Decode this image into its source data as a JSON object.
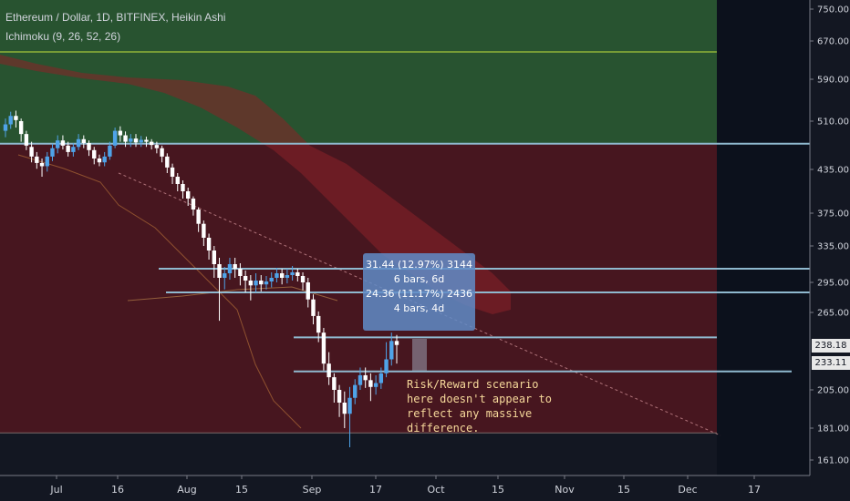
{
  "header": {
    "symbol_line": "Ethereum / Dollar, 1D, BITFINEX, Heikin Ashi",
    "indicator_line": "Ichimoku (9, 26, 52, 26)"
  },
  "measure_box": {
    "line1": "31.44 (12.97%) 3144",
    "line2": "6 bars, 6d",
    "line3": "24.36 (11.17%) 2436",
    "line4": "4 bars, 4d"
  },
  "annotation": {
    "line1": "Risk/Reward scenario",
    "line2": "here doesn't appear to",
    "line3": "reflect any massive",
    "line4": "difference."
  },
  "price_badges": {
    "upper": "238.18",
    "lower": "233.11"
  },
  "chart_data": {
    "type": "candlestick",
    "title": "Ethereum / Dollar, 1D, BITFINEX, Heikin Ashi",
    "y_ticks": [
      "750.00",
      "670.00",
      "590.00",
      "510.00",
      "435.00",
      "375.00",
      "335.00",
      "295.00",
      "265.00",
      "238.18",
      "233.11",
      "205.00",
      "181.00",
      "161.00"
    ],
    "x_ticks": [
      "Jul",
      "16",
      "Aug",
      "15",
      "Sep",
      "17",
      "Oct",
      "15",
      "Nov",
      "15",
      "Dec",
      "17"
    ],
    "horizontal_levels": [
      475,
      310,
      285,
      244,
      224,
      178
    ],
    "zones": [
      {
        "name": "green",
        "from": 475,
        "to": 750,
        "color": "#2f6e3a"
      },
      {
        "name": "red",
        "from": 178,
        "to": 475,
        "color": "#6b1e25"
      }
    ],
    "candles": [
      {
        "o": 495,
        "c": 505,
        "h": 515,
        "l": 485
      },
      {
        "o": 505,
        "c": 520,
        "h": 528,
        "l": 498
      },
      {
        "o": 520,
        "c": 512,
        "h": 530,
        "l": 500
      },
      {
        "o": 510,
        "c": 490,
        "h": 515,
        "l": 478
      },
      {
        "o": 490,
        "c": 472,
        "h": 495,
        "l": 465
      },
      {
        "o": 470,
        "c": 455,
        "h": 478,
        "l": 446
      },
      {
        "o": 455,
        "c": 445,
        "h": 462,
        "l": 436
      },
      {
        "o": 445,
        "c": 440,
        "h": 452,
        "l": 425
      },
      {
        "o": 440,
        "c": 455,
        "h": 462,
        "l": 432
      },
      {
        "o": 455,
        "c": 468,
        "h": 475,
        "l": 448
      },
      {
        "o": 468,
        "c": 480,
        "h": 488,
        "l": 460
      },
      {
        "o": 480,
        "c": 472,
        "h": 488,
        "l": 466
      },
      {
        "o": 472,
        "c": 462,
        "h": 478,
        "l": 455
      },
      {
        "o": 462,
        "c": 470,
        "h": 476,
        "l": 455
      },
      {
        "o": 470,
        "c": 482,
        "h": 490,
        "l": 465
      },
      {
        "o": 482,
        "c": 476,
        "h": 488,
        "l": 468
      },
      {
        "o": 476,
        "c": 465,
        "h": 480,
        "l": 456
      },
      {
        "o": 465,
        "c": 452,
        "h": 470,
        "l": 443
      },
      {
        "o": 452,
        "c": 446,
        "h": 458,
        "l": 440
      },
      {
        "o": 446,
        "c": 455,
        "h": 462,
        "l": 440
      },
      {
        "o": 455,
        "c": 472,
        "h": 478,
        "l": 450
      },
      {
        "o": 472,
        "c": 495,
        "h": 500,
        "l": 468
      },
      {
        "o": 495,
        "c": 488,
        "h": 502,
        "l": 478
      },
      {
        "o": 488,
        "c": 478,
        "h": 494,
        "l": 470
      },
      {
        "o": 478,
        "c": 483,
        "h": 490,
        "l": 470
      },
      {
        "o": 483,
        "c": 477,
        "h": 490,
        "l": 470
      },
      {
        "o": 477,
        "c": 481,
        "h": 487,
        "l": 470
      },
      {
        "o": 481,
        "c": 478,
        "h": 486,
        "l": 470
      },
      {
        "o": 478,
        "c": 473,
        "h": 482,
        "l": 466
      },
      {
        "o": 473,
        "c": 468,
        "h": 478,
        "l": 460
      },
      {
        "o": 468,
        "c": 455,
        "h": 472,
        "l": 446
      },
      {
        "o": 455,
        "c": 438,
        "h": 460,
        "l": 430
      },
      {
        "o": 438,
        "c": 425,
        "h": 444,
        "l": 415
      },
      {
        "o": 425,
        "c": 415,
        "h": 430,
        "l": 405
      },
      {
        "o": 415,
        "c": 405,
        "h": 420,
        "l": 395
      },
      {
        "o": 405,
        "c": 395,
        "h": 410,
        "l": 385
      },
      {
        "o": 395,
        "c": 380,
        "h": 398,
        "l": 372
      },
      {
        "o": 380,
        "c": 362,
        "h": 383,
        "l": 352
      },
      {
        "o": 362,
        "c": 345,
        "h": 366,
        "l": 335
      },
      {
        "o": 345,
        "c": 330,
        "h": 350,
        "l": 320
      },
      {
        "o": 330,
        "c": 315,
        "h": 335,
        "l": 300
      },
      {
        "o": 315,
        "c": 300,
        "h": 322,
        "l": 258
      },
      {
        "o": 300,
        "c": 305,
        "h": 312,
        "l": 288
      },
      {
        "o": 305,
        "c": 315,
        "h": 322,
        "l": 298
      },
      {
        "o": 315,
        "c": 310,
        "h": 322,
        "l": 300
      },
      {
        "o": 310,
        "c": 302,
        "h": 316,
        "l": 292
      },
      {
        "o": 302,
        "c": 297,
        "h": 308,
        "l": 285
      },
      {
        "o": 297,
        "c": 292,
        "h": 303,
        "l": 277
      },
      {
        "o": 292,
        "c": 297,
        "h": 305,
        "l": 285
      },
      {
        "o": 297,
        "c": 293,
        "h": 303,
        "l": 286
      },
      {
        "o": 293,
        "c": 296,
        "h": 302,
        "l": 288
      },
      {
        "o": 296,
        "c": 300,
        "h": 306,
        "l": 290
      },
      {
        "o": 300,
        "c": 305,
        "h": 311,
        "l": 295
      },
      {
        "o": 305,
        "c": 300,
        "h": 310,
        "l": 293
      },
      {
        "o": 300,
        "c": 303,
        "h": 310,
        "l": 294
      },
      {
        "o": 303,
        "c": 306,
        "h": 313,
        "l": 297
      },
      {
        "o": 306,
        "c": 302,
        "h": 310,
        "l": 296
      },
      {
        "o": 302,
        "c": 295,
        "h": 306,
        "l": 287
      },
      {
        "o": 295,
        "c": 278,
        "h": 300,
        "l": 270
      },
      {
        "o": 278,
        "c": 262,
        "h": 283,
        "l": 255
      },
      {
        "o": 262,
        "c": 248,
        "h": 266,
        "l": 240
      },
      {
        "o": 248,
        "c": 232,
        "h": 252,
        "l": 225
      },
      {
        "o": 232,
        "c": 218,
        "h": 236,
        "l": 210
      },
      {
        "o": 218,
        "c": 205,
        "h": 222,
        "l": 197
      },
      {
        "o": 205,
        "c": 197,
        "h": 210,
        "l": 188
      },
      {
        "o": 197,
        "c": 190,
        "h": 204,
        "l": 181
      },
      {
        "o": 190,
        "c": 200,
        "h": 208,
        "l": 169
      },
      {
        "o": 200,
        "c": 210,
        "h": 216,
        "l": 196
      },
      {
        "o": 210,
        "c": 220,
        "h": 228,
        "l": 205
      },
      {
        "o": 220,
        "c": 215,
        "h": 228,
        "l": 207
      },
      {
        "o": 215,
        "c": 208,
        "h": 222,
        "l": 198
      },
      {
        "o": 208,
        "c": 212,
        "h": 220,
        "l": 202
      },
      {
        "o": 212,
        "c": 222,
        "h": 228,
        "l": 206
      },
      {
        "o": 222,
        "c": 234,
        "h": 240,
        "l": 218
      },
      {
        "o": 234,
        "c": 241,
        "h": 248,
        "l": 230
      },
      {
        "o": 241,
        "c": 238,
        "h": 246,
        "l": 232
      }
    ]
  }
}
